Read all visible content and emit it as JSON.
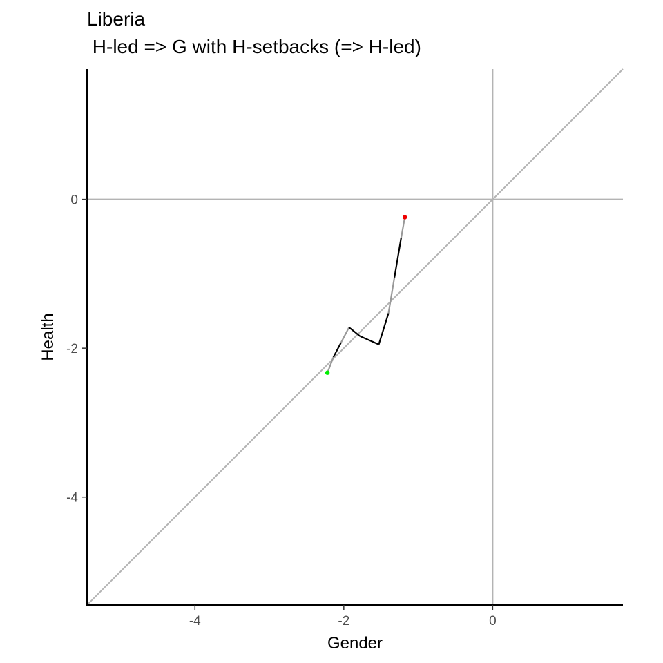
{
  "chart_data": {
    "type": "line",
    "title": "Liberia",
    "subtitle": " H-led => G with H-setbacks (=> H-led)",
    "xlabel": "Gender",
    "ylabel": "Health",
    "xlim": [
      -5.45,
      1.75
    ],
    "ylim": [
      -5.45,
      1.75
    ],
    "x_ticks": [
      -4,
      -2,
      0
    ],
    "y_ticks": [
      -4,
      -2,
      0
    ],
    "reference_lines": {
      "hline": 0,
      "vline": 0,
      "diagonal": "y = x"
    },
    "series": [
      {
        "x": [
          -2.22,
          -2.14,
          -2.04,
          -1.93,
          -1.78,
          -1.53,
          -1.4,
          -1.32,
          -1.23,
          -1.18
        ],
        "y": [
          -2.33,
          -2.12,
          -1.93,
          -1.72,
          -1.84,
          -1.95,
          -1.53,
          -1.05,
          -0.52,
          -0.24
        ],
        "segment_colors": [
          "#999999",
          "#000000",
          "#999999",
          "#000000",
          "#000000",
          "#000000",
          "#999999",
          "#000000",
          "#999999"
        ]
      }
    ],
    "start_point_color": "#00ee00",
    "end_point_color": "#ee0000",
    "grid": false
  },
  "colors": {
    "axis": "#000000",
    "reference_line": "#b3b3b3",
    "tick_label": "#4d4d4d"
  }
}
